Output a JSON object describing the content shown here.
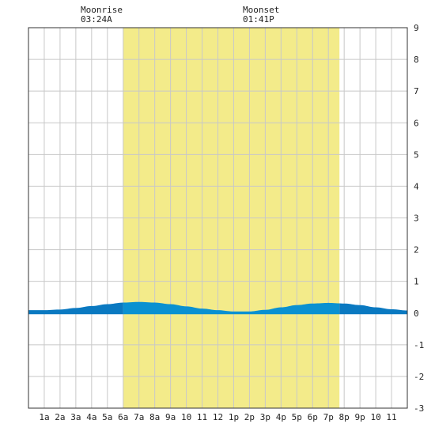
{
  "annotations": [
    {
      "label": "Moonrise",
      "time": "03:24A",
      "hour": 3.4
    },
    {
      "label": "Moonset",
      "time": "01:41P",
      "hour": 13.683
    }
  ],
  "chart_data": {
    "type": "area",
    "title": "",
    "xlabel": "",
    "ylabel": "",
    "xlim": [
      -1,
      23
    ],
    "ylim": [
      -3,
      9
    ],
    "grid": true,
    "x_tick_labels": [
      "1a",
      "2a",
      "3a",
      "4a",
      "5a",
      "6a",
      "7a",
      "8a",
      "9a",
      "10",
      "11",
      "12",
      "1p",
      "2p",
      "3p",
      "4p",
      "5p",
      "6p",
      "7p",
      "8p",
      "9p",
      "10",
      "11"
    ],
    "y_tick_labels": [
      "-3",
      "-2",
      "-1",
      "0",
      "1",
      "2",
      "3",
      "4",
      "5",
      "6",
      "7",
      "8",
      "9"
    ],
    "daylight_hours": [
      5,
      18.7
    ],
    "series": [
      {
        "x": [
          -1,
          0,
          1,
          2,
          3,
          4,
          5,
          6,
          7,
          8,
          9,
          10,
          11,
          12,
          13,
          14,
          15,
          16,
          17,
          18,
          19,
          20,
          21,
          22,
          23
        ],
        "values": [
          0.09,
          0.09,
          0.11,
          0.16,
          0.22,
          0.28,
          0.33,
          0.35,
          0.33,
          0.28,
          0.21,
          0.14,
          0.09,
          0.05,
          0.05,
          0.1,
          0.18,
          0.25,
          0.3,
          0.32,
          0.3,
          0.25,
          0.18,
          0.12,
          0.08
        ]
      }
    ],
    "colors": {
      "daylight": "#f3eb8a",
      "night": "#ffffff",
      "water_day": "#0a91d1",
      "water_night": "#0a79c1",
      "grid": "#c8c8c8",
      "frame": "#333333"
    }
  }
}
